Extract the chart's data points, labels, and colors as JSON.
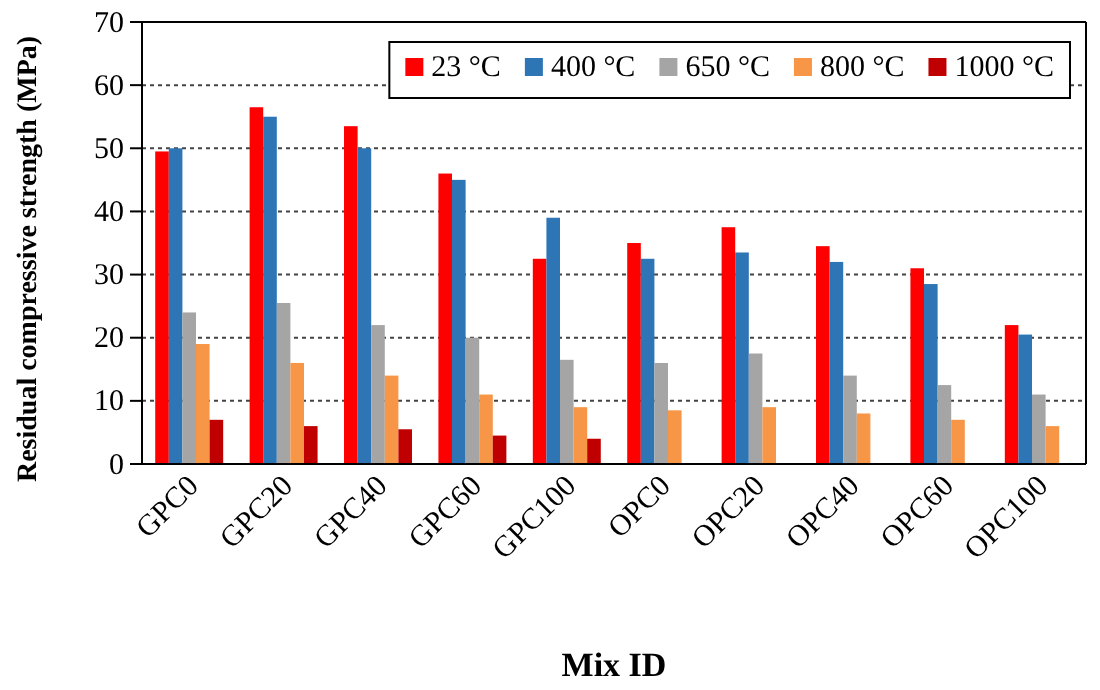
{
  "chart_data": {
    "type": "bar",
    "xlabel": "Mix ID",
    "ylabel": "Residual compressive strength (MPa)",
    "categories": [
      "GPC0",
      "GPC20",
      "GPC40",
      "GPC60",
      "GPC100",
      "OPC0",
      "OPC20",
      "OPC40",
      "OPC60",
      "OPC100"
    ],
    "series": [
      {
        "name": "23 °C",
        "color": "#ff0000",
        "values": [
          49.5,
          56.5,
          53.5,
          46,
          32.5,
          35,
          37.5,
          34.5,
          31,
          22
        ]
      },
      {
        "name": "400 °C",
        "color": "#2e75b6",
        "values": [
          50,
          55,
          50,
          45,
          39,
          32.5,
          33.5,
          32,
          28.5,
          20.5
        ]
      },
      {
        "name": "650 °C",
        "color": "#a5a5a5",
        "values": [
          24,
          25.5,
          22,
          20,
          16.5,
          16,
          17.5,
          14,
          12.5,
          11
        ]
      },
      {
        "name": "800 °C",
        "color": "#f79646",
        "values": [
          19,
          16,
          14,
          11,
          9,
          8.5,
          9,
          8,
          7,
          6
        ]
      },
      {
        "name": "1000 °C",
        "color": "#c00000",
        "values": [
          7,
          6,
          5.5,
          4.5,
          4,
          null,
          null,
          null,
          null,
          null
        ]
      }
    ],
    "ylim": [
      0,
      70
    ],
    "yticks": [
      0,
      10,
      20,
      30,
      40,
      50,
      60,
      70
    ],
    "grid": "y",
    "legend": "top right"
  }
}
